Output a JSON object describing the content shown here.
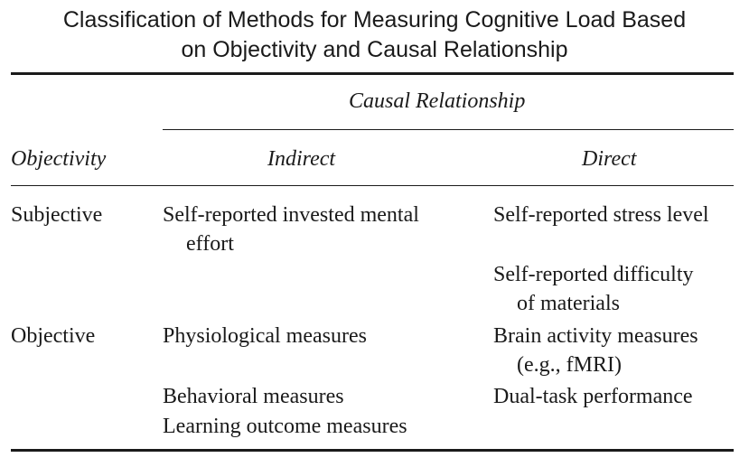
{
  "title": {
    "line1": "Classification of Methods for Measuring Cognitive Load Based",
    "line2": "on Objectivity and Causal Relationship"
  },
  "header": {
    "group_label": "Causal Relationship",
    "row_label": "Objectivity",
    "col_indirect": "Indirect",
    "col_direct": "Direct"
  },
  "rows": {
    "subjective": {
      "label": "Subjective",
      "indirect": [
        {
          "line1": "Self-reported invested mental",
          "line2": "effort"
        }
      ],
      "direct": [
        {
          "line1": "Self-reported stress level"
        },
        {
          "line1": "Self-reported difficulty",
          "line2": "of materials"
        }
      ]
    },
    "objective": {
      "label": "Objective",
      "indirect": [
        {
          "line1": "Physiological measures"
        },
        {
          "line1": "Behavioral measures"
        },
        {
          "line1": "Learning outcome measures"
        }
      ],
      "direct": [
        {
          "line1": "Brain activity measures",
          "line2": "(e.g., fMRI)"
        },
        {
          "line1": "Dual-task performance"
        }
      ]
    }
  }
}
